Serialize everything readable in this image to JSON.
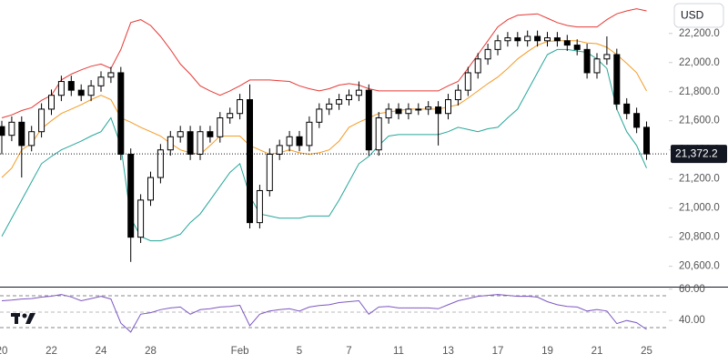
{
  "chart_data": {
    "type": "candlestick",
    "currency": "USD",
    "categories": [
      "20",
      null,
      null,
      null,
      null,
      "22",
      null,
      null,
      null,
      null,
      "24",
      null,
      null,
      null,
      null,
      "28",
      null,
      null,
      null,
      null,
      null,
      null,
      null,
      null,
      "Feb",
      null,
      null,
      null,
      null,
      null,
      "5",
      null,
      null,
      null,
      null,
      "7",
      null,
      null,
      null,
      null,
      "11",
      null,
      null,
      null,
      null,
      "13",
      null,
      null,
      null,
      null,
      "17",
      null,
      null,
      null,
      null,
      "19",
      null,
      null,
      null,
      null,
      "21",
      null,
      null,
      null,
      null,
      "25"
    ],
    "open": [
      21560,
      21500,
      21590,
      21430,
      21525,
      21680,
      21775,
      21870,
      21810,
      21775,
      21840,
      21900,
      21930,
      21370,
      20800,
      21055,
      21210,
      21400,
      21490,
      21525,
      21370,
      21525,
      21490,
      21620,
      21650,
      21745,
      20900,
      21120,
      21370,
      21430,
      21490,
      21430,
      21590,
      21680,
      21715,
      21745,
      21775,
      21810,
      21400,
      21620,
      21680,
      21650,
      21680,
      21680,
      21695,
      21650,
      21745,
      21810,
      21930,
      22025,
      22090,
      22150,
      22170,
      22150,
      22180,
      22150,
      22170,
      22150,
      22120,
      22090,
      21930,
      22025,
      22055,
      21715,
      21650,
      21555
    ],
    "high": [
      21600,
      21630,
      21630,
      21565,
      21720,
      21815,
      21910,
      21910,
      21850,
      21880,
      21940,
      21970,
      21970,
      21410,
      21095,
      21250,
      21440,
      21530,
      21565,
      21565,
      21565,
      21565,
      21660,
      21690,
      21785,
      21850,
      21160,
      21410,
      21470,
      21530,
      21530,
      21630,
      21720,
      21755,
      21785,
      21815,
      21870,
      21850,
      21660,
      21720,
      21720,
      21720,
      21720,
      21735,
      21735,
      21785,
      21850,
      21970,
      22065,
      22130,
      22190,
      22210,
      22210,
      22220,
      22220,
      22210,
      22210,
      22190,
      22160,
      22130,
      22065,
      22180,
      22095,
      21755,
      21690,
      21595
    ],
    "low": [
      21370,
      21460,
      21210,
      21390,
      21485,
      21640,
      21735,
      21770,
      21735,
      21735,
      21800,
      21860,
      21330,
      20630,
      20760,
      21015,
      21170,
      21360,
      21450,
      21330,
      21330,
      21450,
      21450,
      21580,
      21610,
      20860,
      20860,
      21080,
      21330,
      21390,
      21390,
      21390,
      21550,
      21640,
      21675,
      21705,
      21735,
      21360,
      21360,
      21580,
      21610,
      21610,
      21640,
      21640,
      21430,
      21610,
      21705,
      21770,
      21890,
      21985,
      22050,
      22110,
      22110,
      22110,
      22110,
      22110,
      22110,
      22080,
      22050,
      21890,
      21890,
      21985,
      21675,
      21610,
      21515,
      21332
    ],
    "close": [
      21500,
      21590,
      21430,
      21525,
      21680,
      21775,
      21870,
      21810,
      21775,
      21840,
      21900,
      21930,
      21370,
      20800,
      21055,
      21210,
      21400,
      21490,
      21525,
      21370,
      21525,
      21490,
      21620,
      21650,
      21745,
      20900,
      21120,
      21370,
      21430,
      21490,
      21430,
      21590,
      21680,
      21715,
      21745,
      21775,
      21810,
      21400,
      21620,
      21680,
      21650,
      21680,
      21680,
      21695,
      21650,
      21745,
      21810,
      21930,
      22025,
      22090,
      22150,
      22170,
      22150,
      22180,
      22150,
      22170,
      22150,
      22120,
      22090,
      21930,
      22025,
      22055,
      21715,
      21650,
      21555,
      21372.2
    ],
    "up_color": "#ffffff",
    "down_color": "#000000",
    "bands": [
      {
        "color": "#e53935",
        "values": [
          21620,
          21640,
          21670,
          21690,
          21740,
          21775,
          21880,
          21920,
          21950,
          21975,
          21990,
          21960,
          22090,
          22275,
          22295,
          22255,
          22180,
          22090,
          21990,
          21920,
          21840,
          21805,
          21775,
          21805,
          21840,
          21880,
          21880,
          21880,
          21875,
          21870,
          21840,
          21820,
          21805,
          21820,
          21845,
          21855,
          21845,
          21820,
          21805,
          21805,
          21805,
          21805,
          21805,
          21805,
          21805,
          21840,
          21870,
          21960,
          22055,
          22150,
          22245,
          22295,
          22325,
          22330,
          22335,
          22305,
          22275,
          22255,
          22245,
          22245,
          22245,
          22295,
          22335,
          22355,
          22370,
          22355
        ]
      },
      {
        "color": "#f59a23",
        "values": [
          21210,
          21275,
          21400,
          21445,
          21545,
          21600,
          21650,
          21680,
          21710,
          21745,
          21775,
          21745,
          21620,
          21590,
          21555,
          21525,
          21495,
          21445,
          21400,
          21380,
          21370,
          21430,
          21495,
          21495,
          21495,
          21430,
          21400,
          21370,
          21380,
          21400,
          21380,
          21370,
          21380,
          21400,
          21460,
          21555,
          21590,
          21620,
          21650,
          21660,
          21670,
          21680,
          21680,
          21680,
          21680,
          21695,
          21710,
          21755,
          21805,
          21855,
          21900,
          21960,
          22025,
          22075,
          22120,
          22145,
          22150,
          22150,
          22150,
          22135,
          22130,
          22105,
          22055,
          21995,
          21930,
          21805
        ]
      },
      {
        "color": "#26a69a",
        "values": [
          20805,
          20930,
          21055,
          21180,
          21305,
          21355,
          21400,
          21430,
          21460,
          21495,
          21525,
          21620,
          21430,
          20930,
          20805,
          20775,
          20775,
          20795,
          20820,
          20900,
          20960,
          21055,
          21150,
          21245,
          21305,
          21085,
          20960,
          20945,
          20930,
          20930,
          20930,
          20945,
          20945,
          20945,
          21055,
          21180,
          21305,
          21355,
          21430,
          21495,
          21505,
          21505,
          21505,
          21505,
          21505,
          21525,
          21555,
          21540,
          21525,
          21545,
          21555,
          21620,
          21680,
          21805,
          21930,
          22055,
          22090,
          22090,
          22080,
          22070,
          22025,
          21960,
          21680,
          21525,
          21430,
          21275
        ]
      }
    ],
    "ylim": [
      20460,
      22430
    ],
    "yticks": [
      {
        "value": 20600,
        "label": "20,600.0"
      },
      {
        "value": 20800,
        "label": "20,800.0"
      },
      {
        "value": 21000,
        "label": "21,000.0"
      },
      {
        "value": 21200,
        "label": "21,200.0"
      },
      {
        "value": 21400,
        "label": "21,400.0"
      },
      {
        "value": 21600,
        "label": "21,600.0"
      },
      {
        "value": 21800,
        "label": "21,800.0"
      },
      {
        "value": 22000,
        "label": "22,000.0"
      },
      {
        "value": 22200,
        "label": "22,200.0"
      }
    ],
    "last_price": {
      "value": 21372.2,
      "label": "21,372.2"
    },
    "rsi": {
      "color": "#7e57c2",
      "values": [
        52.6,
        53,
        53.7,
        54,
        54.9,
        55.5,
        56.6,
        55,
        52.6,
        54,
        55.4,
        53.7,
        38.3,
        32.6,
        44,
        45,
        46.9,
        48,
        48.6,
        44,
        46.9,
        47.5,
        48.6,
        49,
        49.7,
        36.6,
        44,
        46,
        46.9,
        47.5,
        46,
        48.6,
        49.5,
        50,
        51.4,
        52,
        52.6,
        44,
        48.6,
        49,
        48,
        48,
        48,
        48,
        47.5,
        50,
        52.6,
        54,
        55.4,
        56,
        56.6,
        56,
        55.4,
        55.5,
        54.9,
        52,
        50,
        49,
        48.6,
        46,
        47,
        46,
        38,
        40,
        38.6,
        34.3
      ],
      "ylim": [
        25,
        61
      ],
      "yticks": [
        {
          "value": 60,
          "label": "60.00"
        },
        {
          "value": 40,
          "label": "40.00"
        }
      ]
    }
  }
}
